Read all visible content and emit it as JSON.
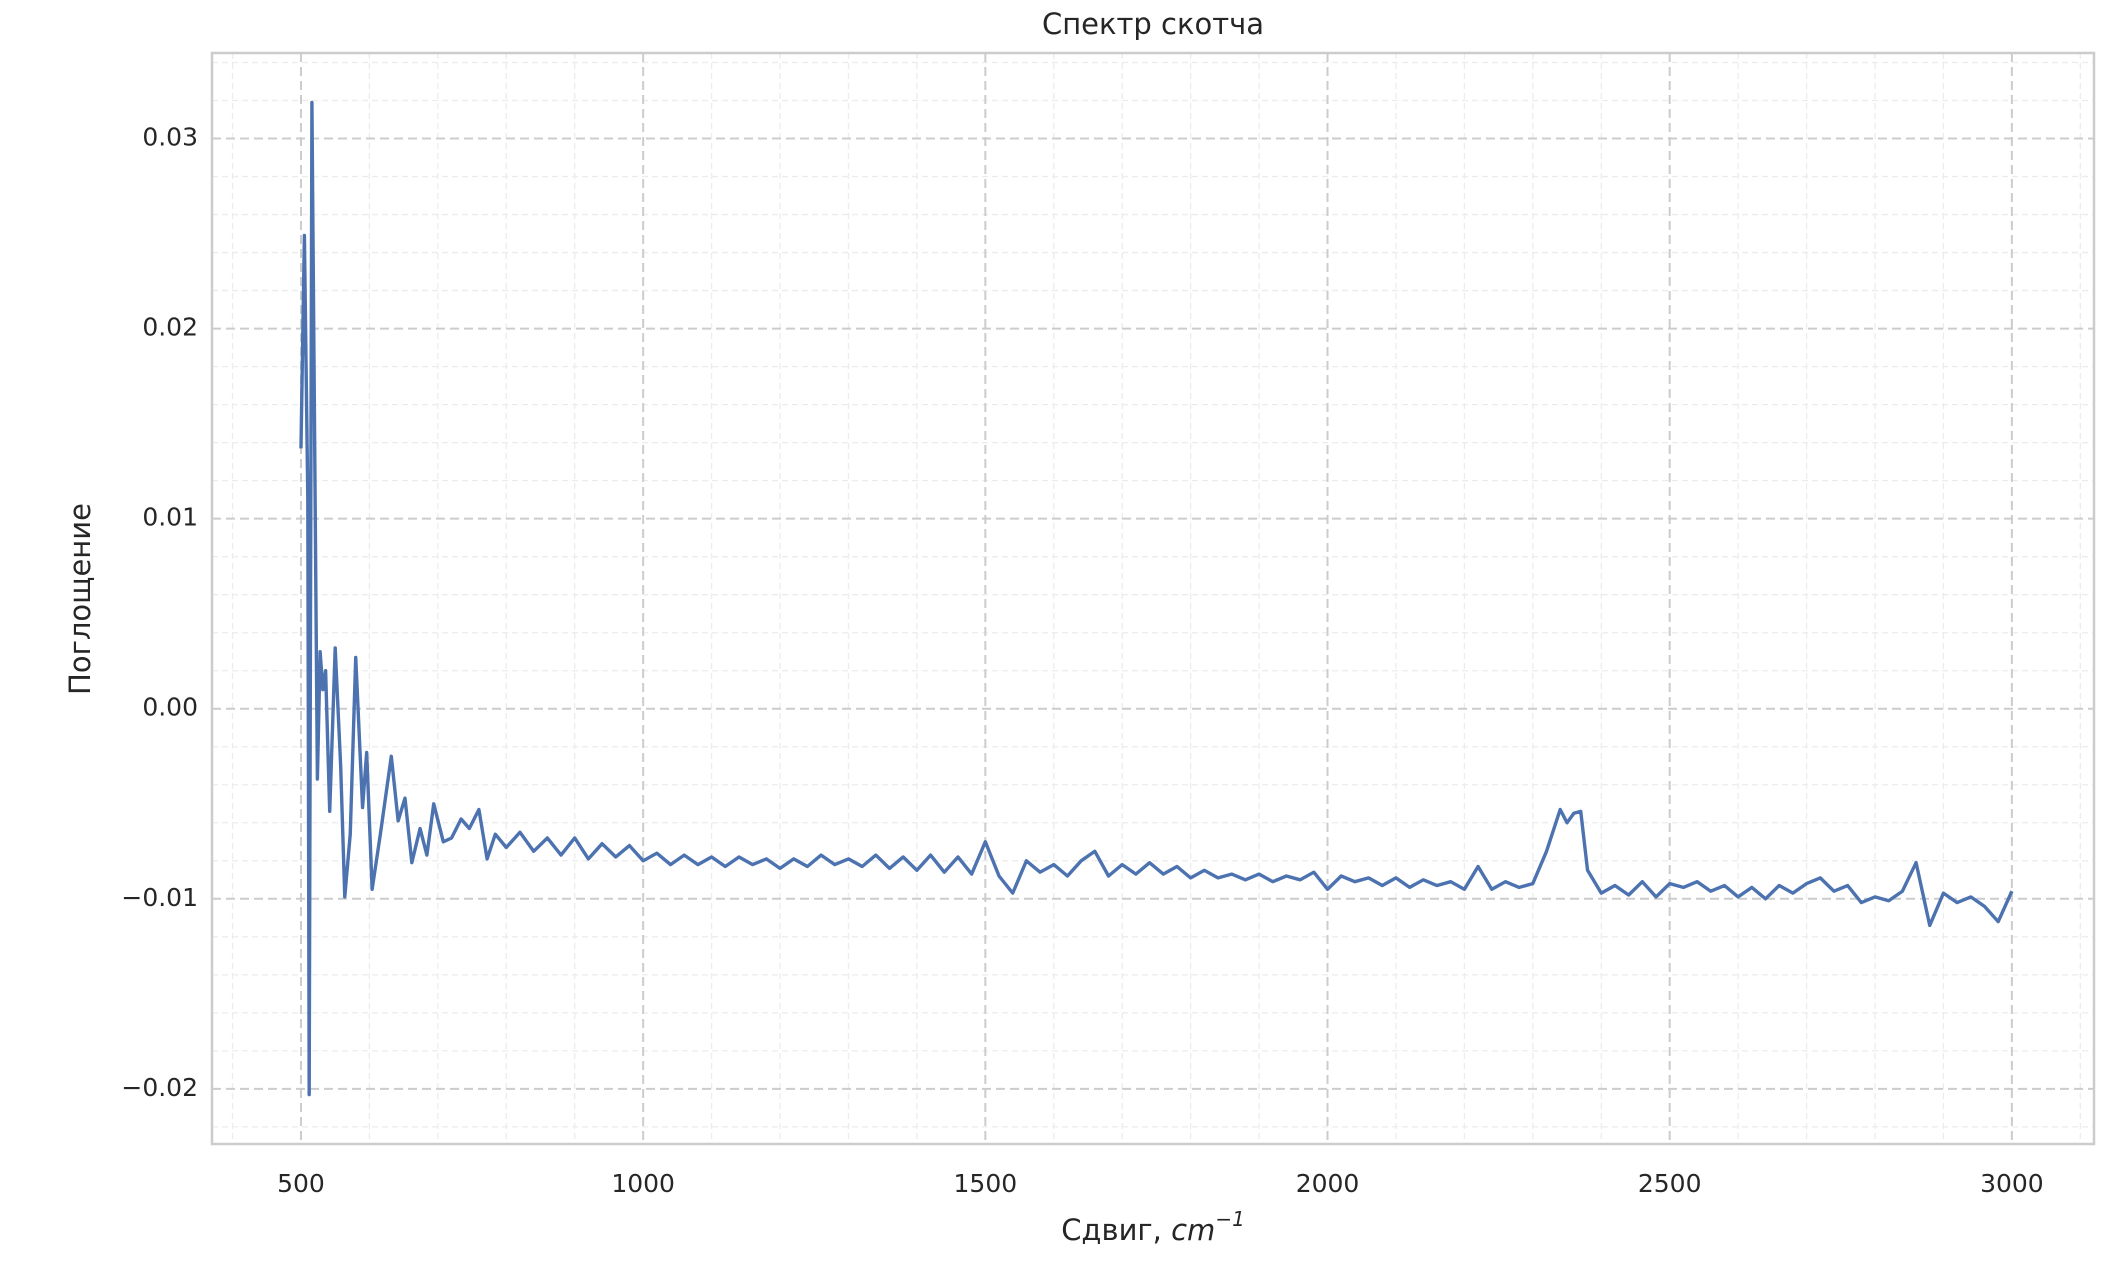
{
  "chart_data": {
    "type": "line",
    "title": "Спектр скотча",
    "xlabel": {
      "text": "Сдвиг,",
      "unit": "cm",
      "exponent": "−1"
    },
    "ylabel": "Поглощение",
    "xlim": [
      370,
      3120
    ],
    "ylim": [
      -0.0229,
      0.0345
    ],
    "xticks": [
      500,
      1000,
      1500,
      2000,
      2500,
      3000
    ],
    "yticks": [
      {
        "value": -0.02,
        "label": "−0.02"
      },
      {
        "value": -0.01,
        "label": "−0.01"
      },
      {
        "value": 0,
        "label": "0.00"
      },
      {
        "value": 0.01,
        "label": "0.01"
      },
      0.02,
      0.03
    ],
    "xminorticks": [
      400,
      600,
      700,
      800,
      900,
      1100,
      1200,
      1300,
      1400,
      1600,
      1700,
      1800,
      1900,
      2100,
      2200,
      2300,
      2400,
      2600,
      2700,
      2800,
      2900,
      3100
    ],
    "yminorticks": [
      -0.022,
      -0.018,
      -0.016,
      -0.014,
      -0.012,
      -0.008,
      -0.006,
      -0.004,
      -0.002,
      0.002,
      0.004,
      0.006,
      0.008,
      0.012,
      0.014,
      0.016,
      0.018,
      0.022,
      0.024,
      0.026,
      0.028,
      0.032,
      0.034
    ],
    "grid": true,
    "minor_grid": true,
    "series": [
      {
        "color": "#4c72b0",
        "x": [
          500,
          505,
          510,
          512,
          516,
          524,
          528,
          532,
          536,
          542,
          550,
          558,
          564,
          572,
          580,
          590,
          596,
          604,
          616,
          632,
          642,
          652,
          662,
          674,
          684,
          694,
          708,
          720,
          734,
          746,
          760,
          772,
          784,
          800,
          820,
          840,
          860,
          880,
          900,
          920,
          940,
          960,
          980,
          1000,
          1020,
          1040,
          1060,
          1080,
          1100,
          1120,
          1140,
          1160,
          1180,
          1200,
          1220,
          1240,
          1260,
          1280,
          1300,
          1320,
          1340,
          1360,
          1380,
          1400,
          1420,
          1440,
          1460,
          1480,
          1500,
          1520,
          1540,
          1560,
          1580,
          1600,
          1620,
          1640,
          1660,
          1680,
          1700,
          1720,
          1740,
          1760,
          1780,
          1800,
          1820,
          1840,
          1860,
          1880,
          1900,
          1920,
          1940,
          1960,
          1980,
          2000,
          2020,
          2040,
          2060,
          2080,
          2100,
          2120,
          2140,
          2160,
          2180,
          2200,
          2220,
          2240,
          2260,
          2280,
          2300,
          2320,
          2340,
          2350,
          2360,
          2370,
          2380,
          2400,
          2420,
          2440,
          2460,
          2480,
          2500,
          2520,
          2540,
          2560,
          2580,
          2600,
          2620,
          2640,
          2660,
          2680,
          2700,
          2720,
          2740,
          2760,
          2780,
          2800,
          2820,
          2840,
          2860,
          2880,
          2900,
          2920,
          2940,
          2960,
          2980,
          3000
        ],
        "values": [
          0.0137,
          0.0249,
          0.011,
          -0.0203,
          0.0319,
          -0.0037,
          0.003,
          0.001,
          0.002,
          -0.0054,
          0.0032,
          -0.003,
          -0.0099,
          -0.0066,
          0.0027,
          -0.0052,
          -0.0023,
          -0.0095,
          -0.0066,
          -0.0025,
          -0.0059,
          -0.0047,
          -0.0081,
          -0.0063,
          -0.0077,
          -0.005,
          -0.007,
          -0.0068,
          -0.0058,
          -0.0063,
          -0.0053,
          -0.0079,
          -0.0066,
          -0.0073,
          -0.0065,
          -0.0075,
          -0.0068,
          -0.0077,
          -0.0068,
          -0.0079,
          -0.0071,
          -0.0078,
          -0.0072,
          -0.008,
          -0.0076,
          -0.0082,
          -0.0077,
          -0.0082,
          -0.0078,
          -0.0083,
          -0.0078,
          -0.0082,
          -0.0079,
          -0.0084,
          -0.0079,
          -0.0083,
          -0.0077,
          -0.0082,
          -0.0079,
          -0.0083,
          -0.0077,
          -0.0084,
          -0.0078,
          -0.0085,
          -0.0077,
          -0.0086,
          -0.0078,
          -0.0087,
          -0.007,
          -0.0088,
          -0.0097,
          -0.008,
          -0.0086,
          -0.0082,
          -0.0088,
          -0.008,
          -0.0075,
          -0.0088,
          -0.0082,
          -0.0087,
          -0.0081,
          -0.0087,
          -0.0083,
          -0.0089,
          -0.0085,
          -0.0089,
          -0.0087,
          -0.009,
          -0.0087,
          -0.0091,
          -0.0088,
          -0.009,
          -0.0086,
          -0.0095,
          -0.0088,
          -0.0091,
          -0.0089,
          -0.0093,
          -0.0089,
          -0.0094,
          -0.009,
          -0.0093,
          -0.0091,
          -0.0095,
          -0.0083,
          -0.0095,
          -0.0091,
          -0.0094,
          -0.0092,
          -0.0075,
          -0.0053,
          -0.006,
          -0.0055,
          -0.0054,
          -0.0085,
          -0.0097,
          -0.0093,
          -0.0098,
          -0.0091,
          -0.0099,
          -0.0092,
          -0.0094,
          -0.0091,
          -0.0096,
          -0.0093,
          -0.0099,
          -0.0094,
          -0.01,
          -0.0093,
          -0.0097,
          -0.0092,
          -0.0089,
          -0.0096,
          -0.0093,
          -0.0102,
          -0.0099,
          -0.0101,
          -0.0096,
          -0.0081,
          -0.0114,
          -0.0097,
          -0.0102,
          -0.0099,
          -0.0104,
          -0.0112,
          -0.0096
        ]
      }
    ]
  }
}
